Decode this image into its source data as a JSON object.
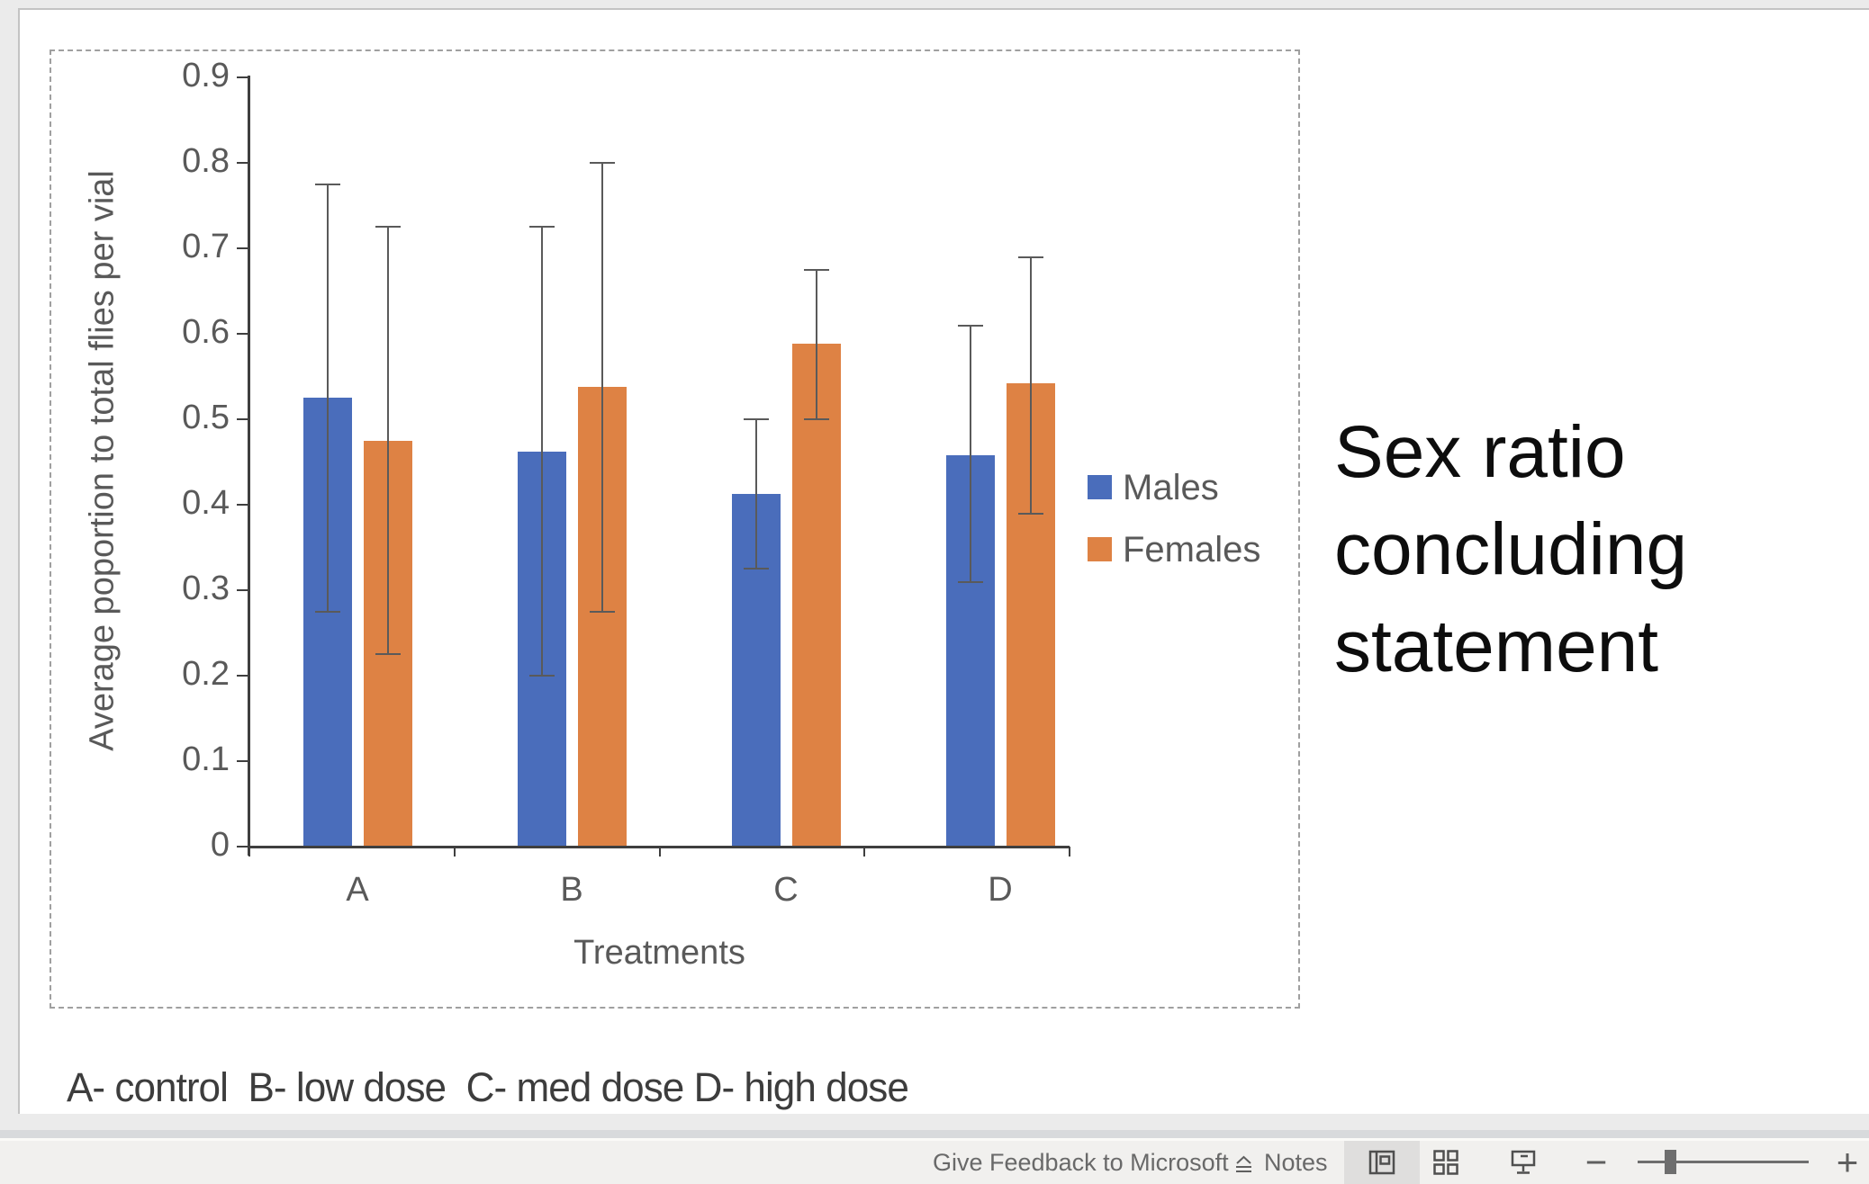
{
  "slide": {
    "title_text": {
      "lines": [
        "Sex ratio",
        "concluding",
        "statement"
      ]
    },
    "caption": "A- control  B- low dose  C- med dose D- high dose"
  },
  "chart_data": {
    "type": "bar",
    "title": "",
    "categories": [
      "A",
      "B",
      "C",
      "D"
    ],
    "series": [
      {
        "name": "Males",
        "color": "#4a6dbb",
        "values": [
          0.525,
          0.462,
          0.413,
          0.458
        ],
        "error_low": [
          0.275,
          0.2,
          0.325,
          0.31
        ],
        "error_high": [
          0.775,
          0.725,
          0.5,
          0.61
        ]
      },
      {
        "name": "Females",
        "color": "#de8244",
        "values": [
          0.475,
          0.538,
          0.588,
          0.542
        ],
        "error_low": [
          0.225,
          0.275,
          0.5,
          0.39
        ],
        "error_high": [
          0.725,
          0.8,
          0.675,
          0.69
        ]
      }
    ],
    "xlabel": "Treatments",
    "ylabel": "Average poportion to total flies per vial",
    "ylim": [
      0,
      0.9
    ],
    "y_ticks": [
      "0",
      "0.1",
      "0.2",
      "0.3",
      "0.4",
      "0.5",
      "0.6",
      "0.7",
      "0.8",
      "0.9"
    ],
    "legend_position": "right",
    "grid": false,
    "error_bars": true,
    "text_color": "#595959",
    "axis_color": "#3f3f3f"
  },
  "status_bar": {
    "feedback_label": "Give Feedback to Microsoft",
    "notes_label": "Notes",
    "zoom_out_glyph": "−",
    "zoom_in_glyph": "+"
  }
}
